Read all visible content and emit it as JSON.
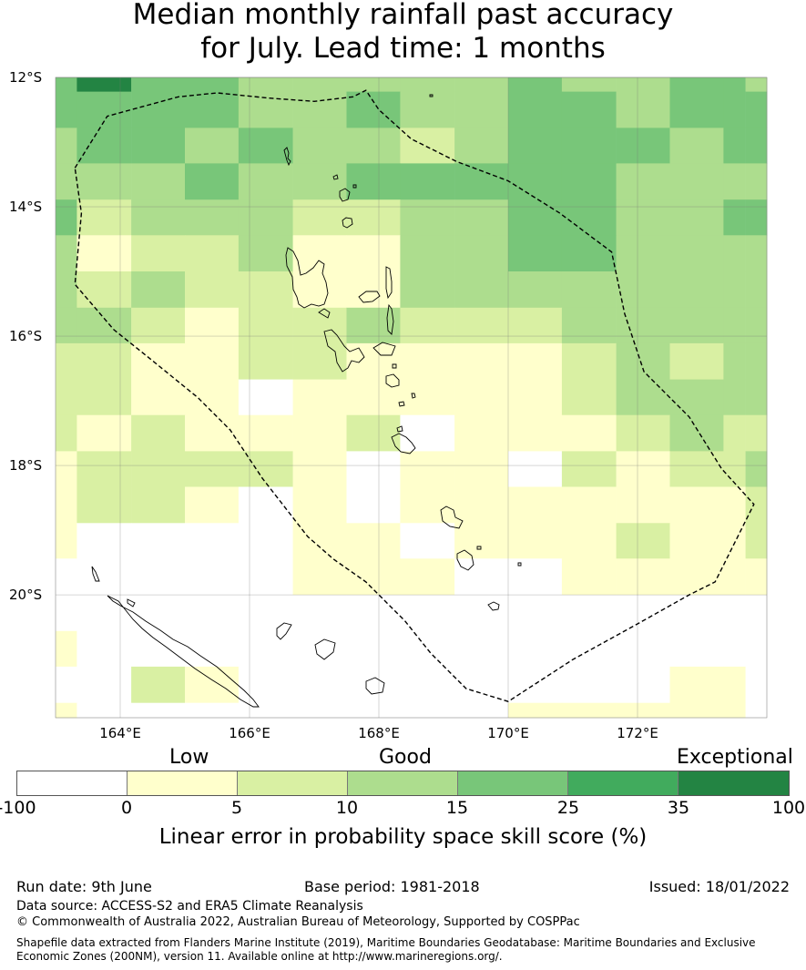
{
  "title": {
    "line1": "Median monthly rainfall past accuracy",
    "line2": "for July. Lead time: 1 months"
  },
  "map": {
    "lat_labels": [
      "12°S",
      "14°S",
      "16°S",
      "18°S",
      "20°S"
    ],
    "lon_labels": [
      "164°E",
      "166°E",
      "168°E",
      "170°E",
      "172°E"
    ],
    "extent": {
      "lon": [
        163.0,
        174.0
      ],
      "lat": [
        -12.0,
        -21.9
      ]
    },
    "grid_columns_lon": [
      163.0,
      163.33,
      164.17,
      165.0,
      165.83,
      166.67,
      167.5,
      168.33,
      169.17,
      170.0,
      170.83,
      171.67,
      172.5,
      173.33,
      173.67,
      174.0
    ],
    "grid_rows_lat": [
      -12.0,
      -12.22,
      -12.78,
      -13.33,
      -13.89,
      -14.44,
      -15.0,
      -15.56,
      -16.11,
      -16.67,
      -17.22,
      -17.78,
      -18.33,
      -18.89,
      -19.44,
      -20.0,
      -20.56,
      -21.11,
      -21.67,
      -21.9
    ],
    "skill_class_grid": [
      [
        4,
        6,
        4,
        4,
        3,
        3,
        3,
        3,
        3,
        4,
        3,
        3,
        4,
        4,
        3
      ],
      [
        4,
        4,
        4,
        4,
        3,
        3,
        4,
        3,
        3,
        4,
        4,
        3,
        4,
        4,
        4
      ],
      [
        3,
        4,
        4,
        3,
        4,
        3,
        3,
        2,
        3,
        4,
        4,
        4,
        3,
        4,
        4
      ],
      [
        3,
        3,
        3,
        4,
        3,
        3,
        4,
        4,
        4,
        4,
        4,
        3,
        3,
        3,
        3
      ],
      [
        4,
        2,
        3,
        3,
        3,
        2,
        2,
        3,
        3,
        4,
        4,
        3,
        3,
        4,
        4
      ],
      [
        3,
        1,
        2,
        2,
        3,
        1,
        1,
        3,
        3,
        4,
        4,
        3,
        3,
        3,
        3
      ],
      [
        3,
        2,
        3,
        2,
        2,
        1,
        1,
        3,
        3,
        3,
        3,
        3,
        3,
        3,
        3
      ],
      [
        3,
        3,
        2,
        1,
        2,
        2,
        3,
        2,
        2,
        2,
        3,
        3,
        3,
        3,
        3
      ],
      [
        2,
        2,
        1,
        1,
        2,
        2,
        1,
        1,
        1,
        1,
        2,
        3,
        2,
        3,
        3
      ],
      [
        2,
        2,
        1,
        1,
        0,
        1,
        1,
        1,
        1,
        1,
        2,
        3,
        3,
        3,
        3
      ],
      [
        2,
        1,
        2,
        1,
        1,
        1,
        2,
        0,
        1,
        1,
        1,
        2,
        3,
        2,
        2
      ],
      [
        1,
        2,
        2,
        2,
        2,
        1,
        0,
        1,
        1,
        0,
        2,
        1,
        2,
        2,
        3
      ],
      [
        1,
        2,
        2,
        1,
        0,
        1,
        -1,
        1,
        1,
        1,
        1,
        1,
        1,
        1,
        2
      ],
      [
        1,
        0,
        0,
        0,
        0,
        1,
        1,
        0,
        1,
        1,
        1,
        2,
        1,
        1,
        2
      ],
      [
        0,
        0,
        0,
        0,
        0,
        1,
        1,
        1,
        0,
        0,
        1,
        1,
        1,
        1,
        1
      ],
      [
        0,
        0,
        0,
        0,
        0,
        0,
        0,
        0,
        0,
        0,
        0,
        -1,
        0,
        -1,
        -1
      ],
      [
        1,
        0,
        0,
        0,
        0,
        0,
        0,
        0,
        0,
        0,
        0,
        0,
        -1,
        -1,
        -1
      ],
      [
        0,
        0,
        2,
        1,
        0,
        0,
        0,
        0,
        0,
        0,
        0,
        0,
        1,
        1,
        -1
      ],
      [
        1,
        -1,
        0,
        0,
        0,
        0,
        0,
        0,
        0,
        1,
        1,
        1,
        1,
        1,
        0
      ]
    ],
    "eez_boundary_lonlat": [
      [
        163.3,
        -13.4
      ],
      [
        163.8,
        -12.6
      ],
      [
        164.9,
        -12.3
      ],
      [
        165.5,
        -12.24
      ],
      [
        166.3,
        -12.32
      ],
      [
        167.0,
        -12.37
      ],
      [
        167.6,
        -12.3
      ],
      [
        167.8,
        -12.2
      ],
      [
        168.0,
        -12.5
      ],
      [
        168.5,
        -12.95
      ],
      [
        169.2,
        -13.3
      ],
      [
        170.0,
        -13.6
      ],
      [
        170.8,
        -14.1
      ],
      [
        171.6,
        -14.7
      ],
      [
        171.8,
        -15.65
      ],
      [
        172.1,
        -16.55
      ],
      [
        172.8,
        -17.25
      ],
      [
        173.3,
        -18.05
      ],
      [
        173.8,
        -18.6
      ],
      [
        173.2,
        -19.8
      ],
      [
        172.8,
        -20.0
      ],
      [
        172.0,
        -20.45
      ],
      [
        171.0,
        -21.0
      ],
      [
        170.0,
        -21.65
      ],
      [
        169.35,
        -21.45
      ],
      [
        168.8,
        -20.9
      ],
      [
        168.4,
        -20.4
      ],
      [
        167.8,
        -19.8
      ],
      [
        167.3,
        -19.45
      ],
      [
        166.9,
        -19.1
      ],
      [
        166.2,
        -18.2
      ],
      [
        165.7,
        -17.45
      ],
      [
        165.2,
        -16.95
      ],
      [
        164.4,
        -16.3
      ],
      [
        163.9,
        -15.9
      ],
      [
        163.3,
        -15.2
      ],
      [
        163.4,
        -14.1
      ],
      [
        163.3,
        -13.4
      ]
    ]
  },
  "colorbar": {
    "categories": [
      "Low",
      "Good",
      "Exceptional"
    ],
    "ticks": [
      "-100",
      "0",
      "5",
      "10",
      "15",
      "25",
      "35",
      "100"
    ],
    "colors": [
      "#ffffff",
      "#ffffcc",
      "#d9f0a3",
      "#addd8e",
      "#78c679",
      "#41ab5d",
      "#238443"
    ],
    "label": "Linear error in probability space skill score (%)"
  },
  "footer": {
    "run_date": "Run date: 9th June",
    "base_period": "Base period: 1981-2018",
    "issued": "Issued: 18/01/2022",
    "data_source": "Data source: ACCESS-S2 and ERA5 Climate Reanalysis",
    "copyright": "© Commonwealth of Australia 2022, Australian Bureau of Meteorology, Supported by COSPPac",
    "shapefile_line1": "Shapefile data extracted from Flanders Marine Institute (2019), Maritime Boundaries Geodatabase: Maritime Boundaries and Exclusive",
    "shapefile_line2": "Economic Zones (200NM), version 11. Available online at http://www.marineregions.org/."
  }
}
